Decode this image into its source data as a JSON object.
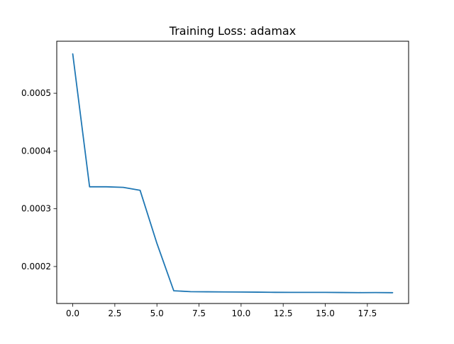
{
  "chart_data": {
    "type": "line",
    "title": "Training Loss: adamax",
    "xlabel": "",
    "ylabel": "",
    "xlim": [
      -0.95,
      19.95
    ],
    "ylim": [
      0.000136,
      0.00059
    ],
    "xticks": [
      0,
      2.5,
      5,
      7.5,
      10,
      12.5,
      15,
      17.5
    ],
    "xtick_labels": [
      "0.0",
      "2.5",
      "5.0",
      "7.5",
      "10.0",
      "12.5",
      "15.0",
      "17.5"
    ],
    "yticks": [
      0.0002,
      0.0003,
      0.0004,
      0.0005
    ],
    "ytick_labels": [
      "0.0002",
      "0.0003",
      "0.0004",
      "0.0005"
    ],
    "grid": false,
    "line_color": "#1f77b4",
    "series": [
      {
        "x": [
          0,
          1,
          2,
          3,
          4,
          5,
          6,
          7,
          8,
          9,
          10,
          11,
          12,
          13,
          14,
          15,
          16,
          17,
          18,
          19
        ],
        "values": [
          0.000568,
          0.000338,
          0.000338,
          0.000337,
          0.000332,
          0.00024,
          0.000158,
          0.0001565,
          0.0001562,
          0.000156,
          0.0001558,
          0.0001556,
          0.0001553,
          0.0001552,
          0.0001552,
          0.0001552,
          0.000155,
          0.0001548,
          0.0001549,
          0.0001547
        ]
      }
    ]
  }
}
